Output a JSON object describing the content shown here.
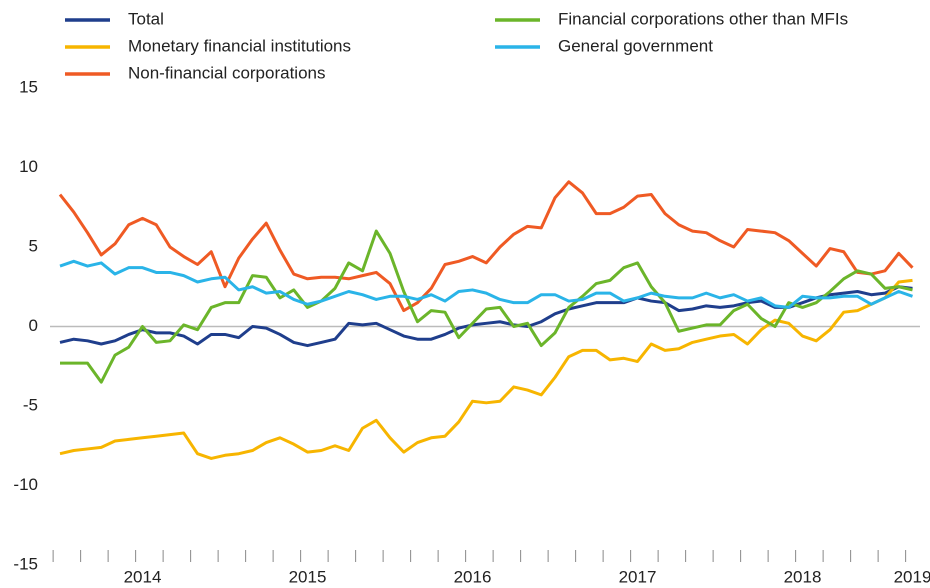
{
  "chart_data": {
    "type": "line",
    "categories": [
      null,
      null,
      null,
      null,
      null,
      null,
      "2014",
      null,
      null,
      null,
      null,
      null,
      null,
      null,
      null,
      null,
      null,
      null,
      "2015",
      null,
      null,
      null,
      null,
      null,
      null,
      null,
      null,
      null,
      null,
      null,
      "2016",
      null,
      null,
      null,
      null,
      null,
      null,
      null,
      null,
      null,
      null,
      null,
      "2017",
      null,
      null,
      null,
      null,
      null,
      null,
      null,
      null,
      null,
      null,
      null,
      "2018",
      null,
      null,
      null,
      null,
      null,
      null,
      null,
      "2019"
    ],
    "series": [
      {
        "name": "Total",
        "color": "#1f3e8c",
        "values": [
          -1,
          -0.8,
          -0.9,
          -1.1,
          -0.9,
          -0.5,
          -0.2,
          -0.4,
          -0.4,
          -0.6,
          -1.1,
          -0.5,
          -0.5,
          -0.7,
          0,
          -0.1,
          -0.5,
          -1.0,
          -1.2,
          -1.0,
          -0.8,
          0.2,
          0.1,
          0.2,
          -0.2,
          -0.6,
          -0.8,
          -0.8,
          -0.5,
          -0.1,
          0.1,
          0.2,
          0.3,
          0.1,
          0,
          0.3,
          0.8,
          1.1,
          1.3,
          1.5,
          1.5,
          1.5,
          1.8,
          1.6,
          1.5,
          1.0,
          1.1,
          1.3,
          1.2,
          1.3,
          1.5,
          1.6,
          1.2,
          1.2,
          1.5,
          1.8,
          2.0,
          2.1,
          2.2,
          2.0,
          2.1,
          2.5,
          2.4
        ]
      },
      {
        "name": "Monetary financial institutions",
        "color": "#f7b500",
        "values": [
          -8.0,
          -7.8,
          -7.7,
          -7.6,
          -7.2,
          -7.1,
          -7.0,
          -6.9,
          -6.8,
          -6.7,
          -8.0,
          -8.3,
          -8.1,
          -8.0,
          -7.8,
          -7.3,
          -7.0,
          -7.4,
          -7.9,
          -7.8,
          -7.5,
          -7.8,
          -6.4,
          -5.9,
          -7.0,
          -7.9,
          -7.3,
          -7.0,
          -6.9,
          -6.0,
          -4.7,
          -4.8,
          -4.7,
          -3.8,
          -4.0,
          -4.3,
          -3.2,
          -1.9,
          -1.5,
          -1.5,
          -2.1,
          -2.0,
          -2.2,
          -1.1,
          -1.5,
          -1.4,
          -1.0,
          -0.8,
          -0.6,
          -0.5,
          -1.1,
          -0.2,
          0.4,
          0.2,
          -0.6,
          -0.9,
          -0.2,
          0.9,
          1.0,
          1.4,
          1.8,
          2.8,
          2.9
        ]
      },
      {
        "name": "Non-financial corporations",
        "color": "#ef5a24",
        "values": [
          8.3,
          7.2,
          5.9,
          4.5,
          5.2,
          6.4,
          6.8,
          6.4,
          5.0,
          4.4,
          3.9,
          4.7,
          2.5,
          4.3,
          5.5,
          6.5,
          4.8,
          3.3,
          3.0,
          3.1,
          3.1,
          3.0,
          3.2,
          3.4,
          2.7,
          1.0,
          1.5,
          2.4,
          3.9,
          4.1,
          4.4,
          4.0,
          5.0,
          5.8,
          6.3,
          6.2,
          8.1,
          9.1,
          8.4,
          7.1,
          7.1,
          7.5,
          8.2,
          8.3,
          7.1,
          6.4,
          6.0,
          5.9,
          5.4,
          5.0,
          6.1,
          6.0,
          5.9,
          5.4,
          4.6,
          3.8,
          4.9,
          4.7,
          3.4,
          3.3,
          3.5,
          4.6,
          3.7
        ]
      },
      {
        "name": "Financial corporations other than MFIs",
        "color": "#6bb52a",
        "values": [
          -2.3,
          -2.3,
          -2.3,
          -3.5,
          -1.8,
          -1.3,
          0,
          -1.0,
          -0.9,
          0.1,
          -0.2,
          1.2,
          1.5,
          1.5,
          3.2,
          3.1,
          1.8,
          2.3,
          1.2,
          1.6,
          2.4,
          4.0,
          3.5,
          6.0,
          4.6,
          2.2,
          0.3,
          1.0,
          0.9,
          -0.7,
          0.2,
          1.1,
          1.2,
          0,
          0.2,
          -1.2,
          -0.4,
          1.2,
          1.9,
          2.7,
          2.9,
          3.7,
          4.0,
          2.5,
          1.5,
          -0.3,
          -0.1,
          0.1,
          0.1,
          1.0,
          1.4,
          0.5,
          0,
          1.5,
          1.2,
          1.5,
          2.2,
          3.0,
          3.5,
          3.3,
          2.4,
          2.5,
          2.3
        ]
      },
      {
        "name": "General government",
        "color": "#2ab4e8",
        "values": [
          3.8,
          4.1,
          3.8,
          4.0,
          3.3,
          3.7,
          3.7,
          3.4,
          3.4,
          3.2,
          2.8,
          3.0,
          3.1,
          2.3,
          2.5,
          2.1,
          2.2,
          1.7,
          1.4,
          1.6,
          1.9,
          2.2,
          2.0,
          1.7,
          1.9,
          1.9,
          1.7,
          2.0,
          1.6,
          2.2,
          2.3,
          2.1,
          1.7,
          1.5,
          1.5,
          2.0,
          2.0,
          1.6,
          1.7,
          2.1,
          2.1,
          1.6,
          1.8,
          2.1,
          1.9,
          1.8,
          1.8,
          2.1,
          1.8,
          2.0,
          1.6,
          1.8,
          1.3,
          1.2,
          1.9,
          1.8,
          1.8,
          1.9,
          1.9,
          1.4,
          1.8,
          2.2,
          1.9
        ]
      }
    ],
    "ylim": [
      -15,
      15
    ],
    "yticks": [
      -15,
      -10,
      -5,
      0,
      5,
      10,
      15
    ],
    "grid": false,
    "legend": "top"
  }
}
